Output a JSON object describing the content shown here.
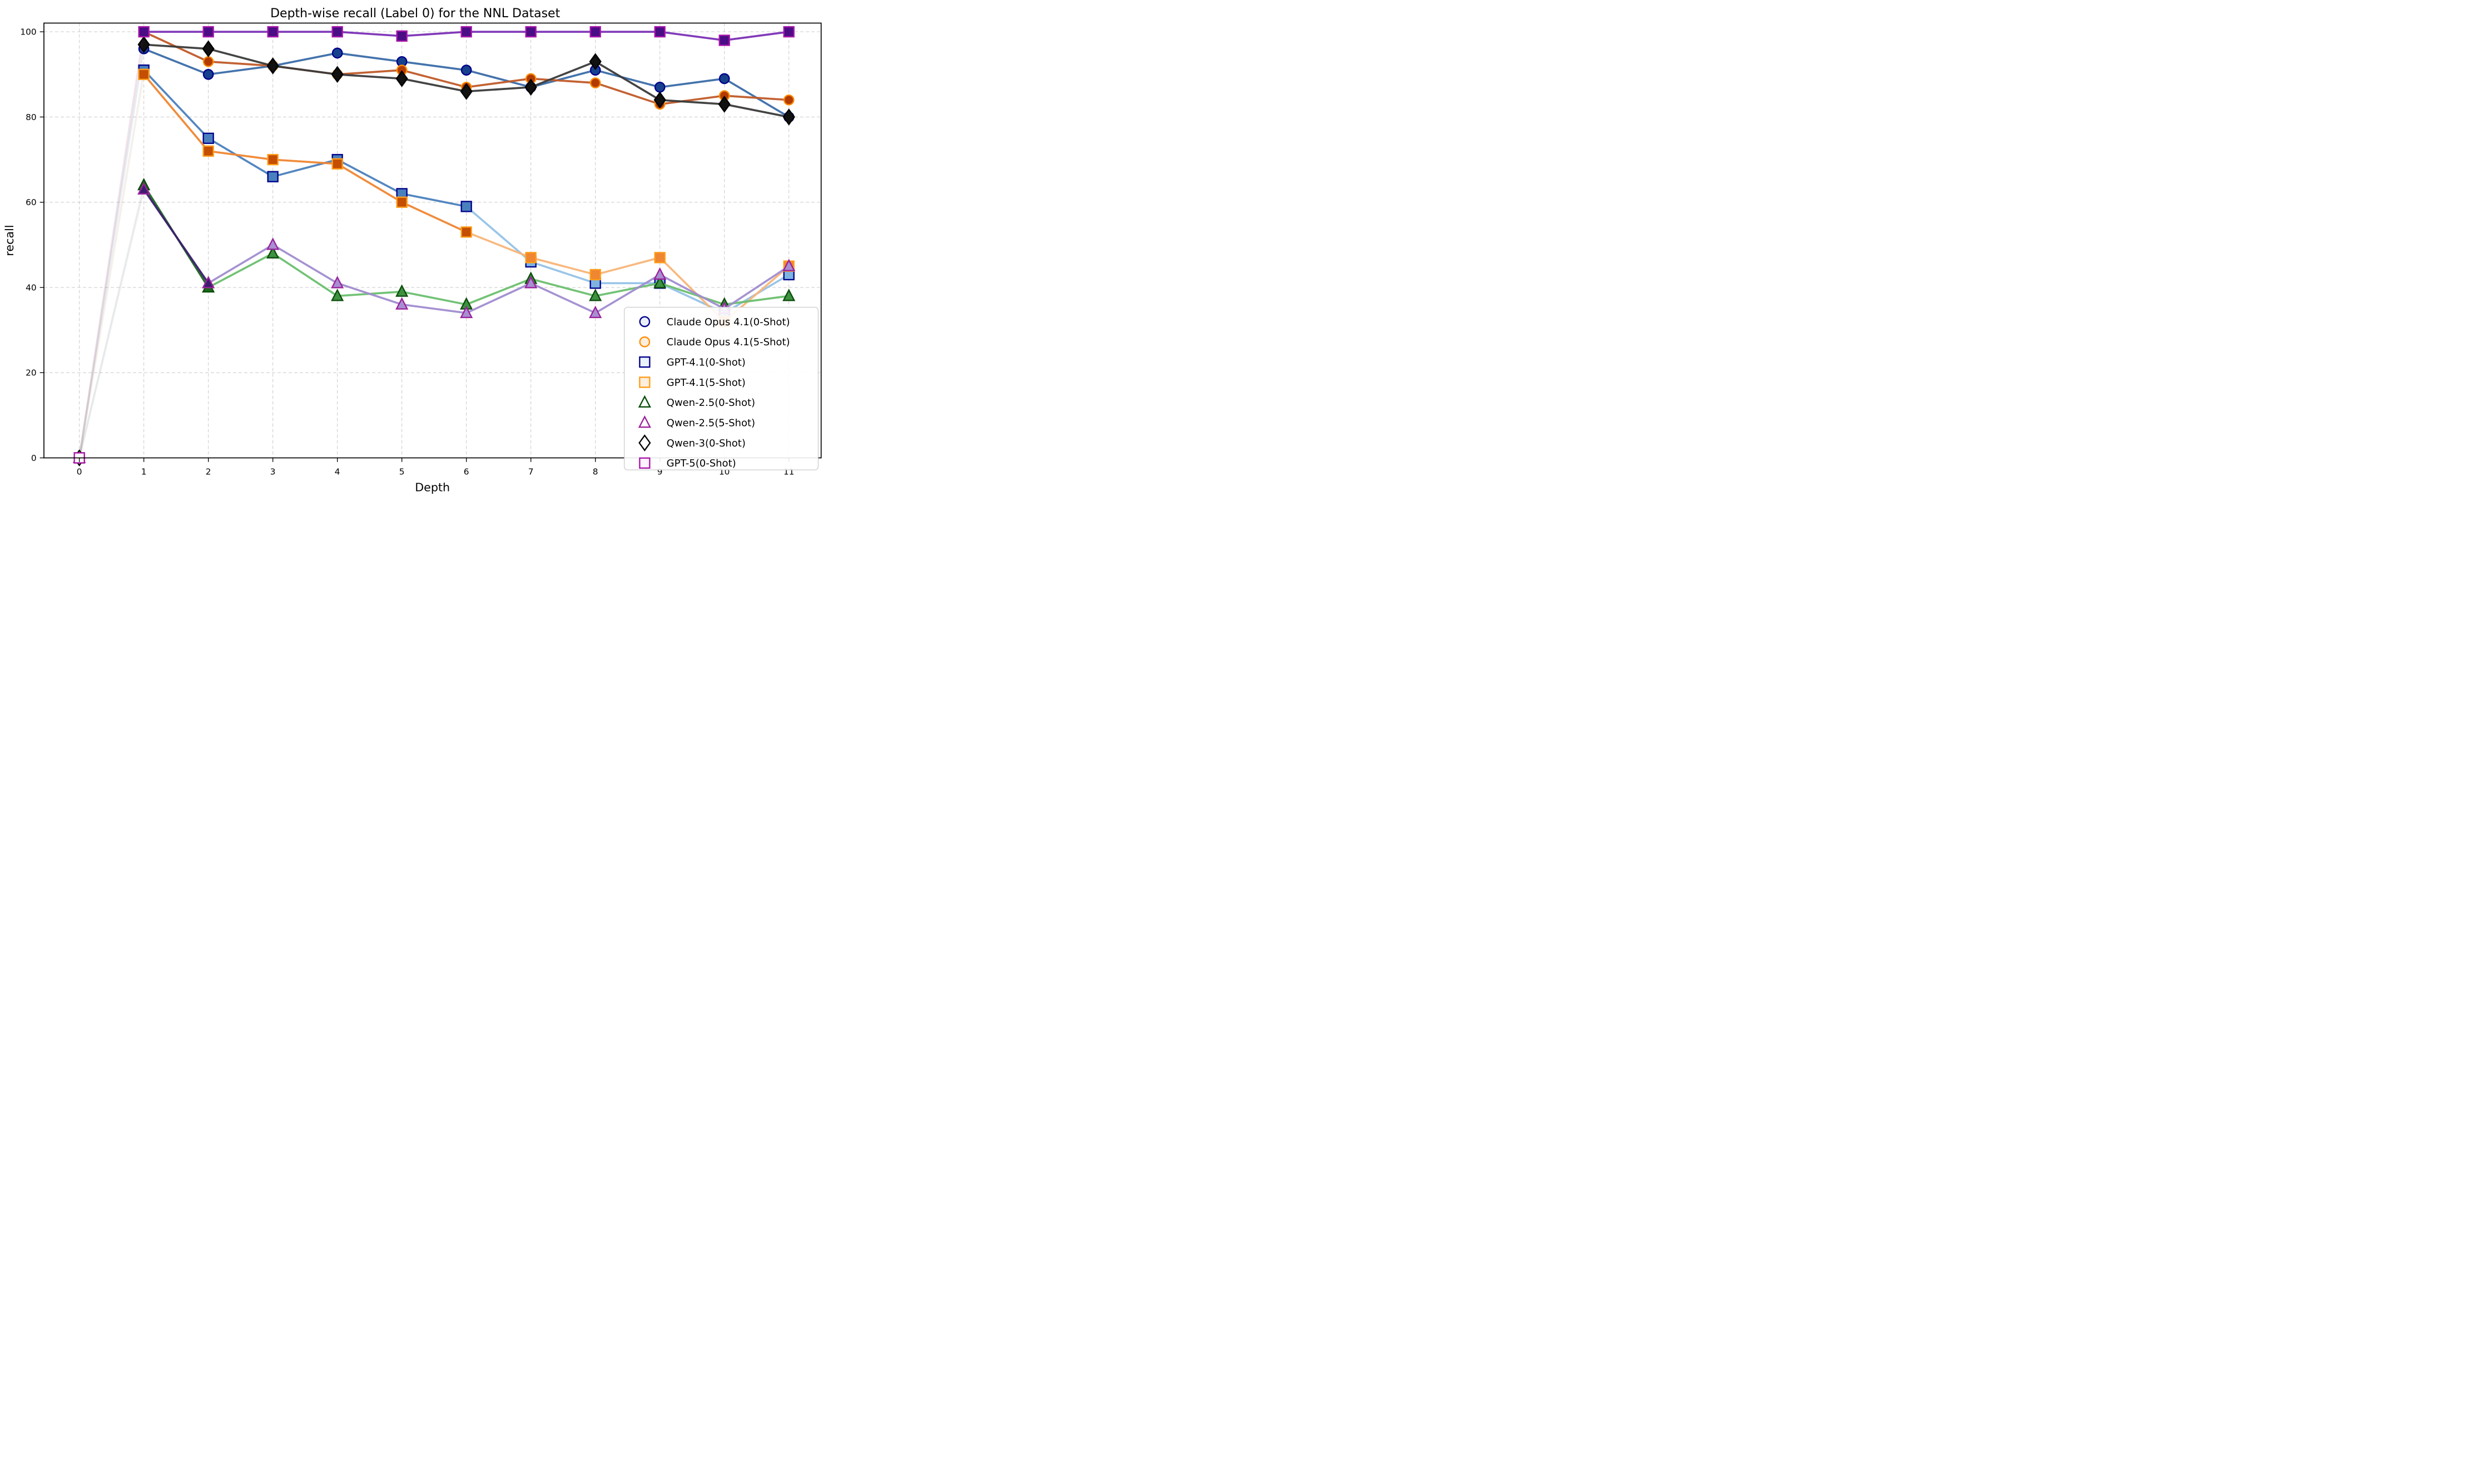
{
  "chart_data": {
    "type": "line",
    "title": "Depth-wise recall (Label 0) for the NNL Dataset",
    "xlabel": "Depth",
    "ylabel": "recall",
    "x": [
      0,
      1,
      2,
      3,
      4,
      5,
      6,
      7,
      8,
      9,
      10,
      11
    ],
    "xtick_labels": [
      "0",
      "1",
      "2",
      "3",
      "4",
      "5",
      "6",
      "7",
      "8",
      "9",
      "10",
      "11"
    ],
    "yticks": [
      0,
      20,
      40,
      60,
      80,
      100
    ],
    "ytick_labels": [
      "0",
      "20",
      "40",
      "60",
      "80",
      "100"
    ],
    "ylim": [
      0,
      102
    ],
    "grid": "both-dashed",
    "legend_position": "lower-right",
    "series": [
      {
        "name": "Claude Opus 4.1(0-Shot)",
        "marker": "circle",
        "line_color": "#3a6ca8",
        "line_color_faded": "#3a6ca8",
        "edge_color": "#00008b",
        "fill_color": "#17418c",
        "fill_color_faded": "#17418c",
        "fade_segment_from": 99,
        "first_segment_alpha": 0.06,
        "values": [
          0,
          96,
          90,
          92,
          95,
          93,
          91,
          87,
          91,
          87,
          89,
          80
        ]
      },
      {
        "name": "Claude Opus 4.1(5-Shot)",
        "marker": "circle",
        "line_color": "#c05a28",
        "line_color_faded": "#c05a28",
        "edge_color": "#ff8c00",
        "fill_color": "#b23c00",
        "fill_color_faded": "#b23c00",
        "fade_segment_from": 99,
        "first_segment_alpha": 0.07,
        "values": [
          0,
          100,
          93,
          92,
          90,
          91,
          87,
          89,
          88,
          83,
          85,
          84
        ]
      },
      {
        "name": "GPT-4.1(0-Shot)",
        "marker": "square",
        "line_color": "#4a80bd",
        "line_color_faded": "#94c2e8",
        "edge_color": "#00008b",
        "fill_color": "#4a80bd",
        "fill_color_faded": "#7eb3e0",
        "fade_segment_from": 6,
        "first_segment_alpha": 0.06,
        "values": [
          0,
          91,
          75,
          66,
          70,
          62,
          59,
          46,
          41,
          41,
          34,
          43
        ]
      },
      {
        "name": "GPT-4.1(5-Shot)",
        "marker": "square",
        "line_color": "#ef8632",
        "line_color_faded": "#f8b578",
        "edge_color": "#ff9c17",
        "fill_color": "#c44e02",
        "fill_color_faded": "#ef8632",
        "fade_segment_from": 6,
        "first_segment_alpha": 0.08,
        "values": [
          0,
          90,
          72,
          70,
          69,
          60,
          53,
          47,
          43,
          47,
          32,
          45
        ]
      },
      {
        "name": "Qwen-2.5(0-Shot)",
        "marker": "triangle",
        "line_color": "#1d671d",
        "line_color_faded": "#6abf6e",
        "edge_color": "#0b4d0b",
        "fill_color": "#1d671d",
        "fill_color_faded": "#3d9140",
        "fade_segment_from": 2,
        "first_segment_alpha": 0.06,
        "values": [
          0,
          64,
          40,
          48,
          38,
          39,
          36,
          42,
          38,
          41,
          36,
          38
        ]
      },
      {
        "name": "Qwen-2.5(5-Shot)",
        "marker": "triangle",
        "line_color": "#3b1d6e",
        "line_color_faded": "#a08cd0",
        "edge_color": "#9c219c",
        "fill_color": "#3b1d6e",
        "fill_color_faded": "#a78fd1",
        "fade_segment_from": 2,
        "first_segment_alpha": 0.06,
        "values": [
          0,
          63,
          41,
          50,
          41,
          36,
          34,
          41,
          34,
          43,
          35,
          45
        ]
      },
      {
        "name": "Qwen-3(0-Shot)",
        "marker": "diamond",
        "line_color": "#3a3a3a",
        "line_color_faded": "#3a3a3a",
        "edge_color": "#000000",
        "fill_color": "#111111",
        "fill_color_faded": "#111111",
        "fade_segment_from": 99,
        "first_segment_alpha": 0.06,
        "values": [
          0,
          97,
          96,
          92,
          90,
          89,
          86,
          87,
          93,
          84,
          83,
          80
        ]
      },
      {
        "name": "GPT-5(0-Shot)",
        "marker": "square",
        "line_color": "#7a2fb5",
        "line_color_faded": "#7a2fb5",
        "edge_color": "#aa16aa",
        "fill_color": "#4a0d85",
        "fill_color_faded": "#4a0d85",
        "fade_segment_from": 99,
        "first_segment_alpha": 0.08,
        "values": [
          0,
          100,
          100,
          100,
          100,
          99,
          100,
          100,
          100,
          100,
          98,
          100
        ]
      }
    ]
  }
}
